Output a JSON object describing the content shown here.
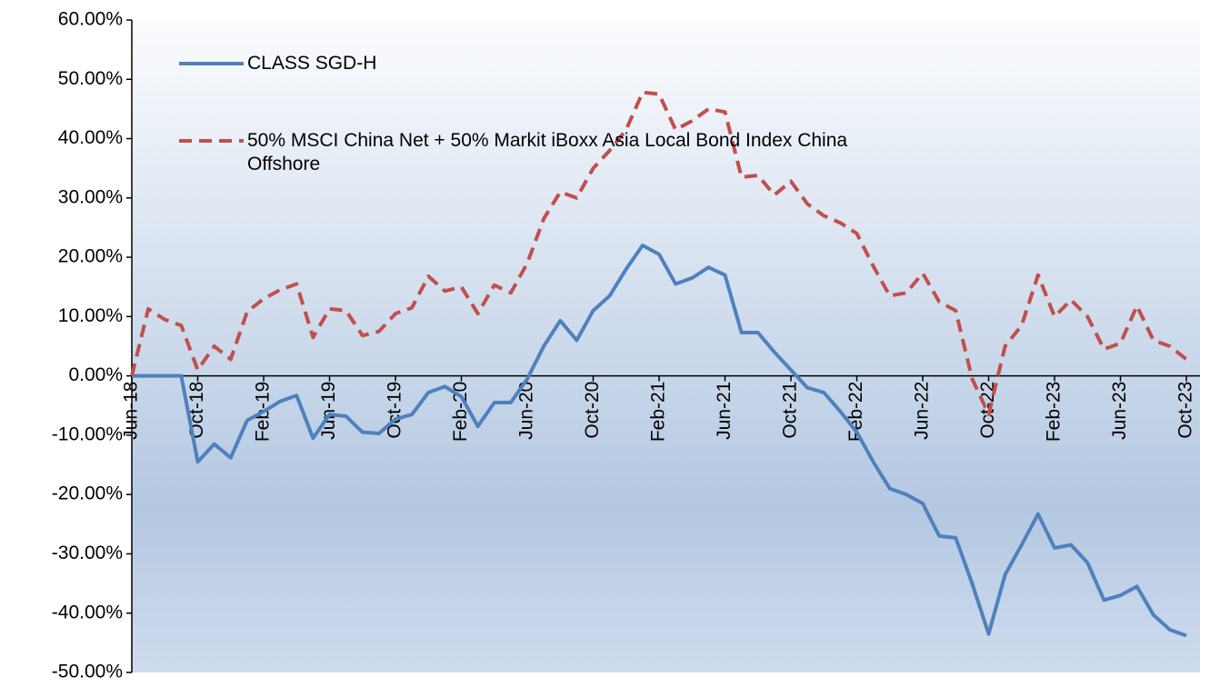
{
  "chart_data": {
    "type": "line",
    "categories": [
      "Jun-18",
      null,
      null,
      null,
      "Oct-18",
      null,
      null,
      null,
      "Feb-19",
      null,
      null,
      null,
      "Jun-19",
      null,
      null,
      null,
      "Oct-19",
      null,
      null,
      null,
      "Feb-20",
      null,
      null,
      null,
      "Jun-20",
      null,
      null,
      null,
      "Oct-20",
      null,
      null,
      null,
      "Feb-21",
      null,
      null,
      null,
      "Jun-21",
      null,
      null,
      null,
      "Oct-21",
      null,
      null,
      null,
      "Feb-22",
      null,
      null,
      null,
      "Jun-22",
      null,
      null,
      null,
      "Oct-22",
      null,
      null,
      null,
      "Feb-23",
      null,
      null,
      null,
      "Jun-23",
      null,
      null,
      null,
      "Oct-23"
    ],
    "series": [
      {
        "name": "CLASS SGD-H",
        "color": "#4f81bd",
        "dashed": false,
        "values": [
          0,
          0,
          0,
          0,
          -14.5,
          -11.5,
          -13.8,
          -7.5,
          -6,
          -4.3,
          -3.3,
          -10.5,
          -6.5,
          -6.8,
          -9.5,
          -9.7,
          -7.3,
          -6.5,
          -2.8,
          -1.8,
          -3.5,
          -8.5,
          -4.5,
          -4.5,
          -0.5,
          5,
          9.3,
          6,
          11,
          13.5,
          18,
          22,
          20.5,
          15.5,
          16.5,
          18.3,
          17,
          7.3,
          7.3,
          4,
          1,
          -2,
          -2.8,
          -6,
          -9.5,
          -14.5,
          -19,
          -20,
          -21.5,
          -27,
          -27.3,
          -35,
          -43.5,
          -33.5,
          -28.5,
          -23.3,
          -29,
          -28.5,
          -31.5,
          -37.8,
          -37,
          -35.5,
          -40.3,
          -42.8,
          -43.8
        ]
      },
      {
        "name": "50% MSCI China Net + 50% Markit iBoxx Asia Local Bond Index China Offshore",
        "color": "#c0504d",
        "dashed": true,
        "values": [
          0,
          11.3,
          9.5,
          8.5,
          1,
          5,
          2.8,
          10.8,
          13,
          14.5,
          15.5,
          6.5,
          11.3,
          11,
          6.8,
          7.5,
          10.5,
          11.5,
          16.8,
          14.3,
          15,
          10.5,
          15.3,
          14,
          19,
          26.5,
          31,
          30,
          35,
          38,
          41.5,
          47.8,
          47.5,
          41.5,
          43,
          45,
          44.5,
          33.5,
          33.8,
          30.5,
          32.8,
          29,
          27,
          25.8,
          24,
          18.5,
          13.5,
          14,
          17.3,
          12.5,
          11,
          -0.5,
          -6.5,
          5,
          8.5,
          17,
          10,
          12.8,
          10,
          4.5,
          5.5,
          11.8,
          6,
          5,
          2.8
        ]
      }
    ],
    "ylim": [
      -50,
      60
    ],
    "yticks": [
      {
        "value": -50,
        "label": "-50.00%"
      },
      {
        "value": -40,
        "label": "-40.00%"
      },
      {
        "value": -30,
        "label": "-30.00%"
      },
      {
        "value": -20,
        "label": "-20.00%"
      },
      {
        "value": -10,
        "label": "-10.00%"
      },
      {
        "value": 0,
        "label": "0.00%"
      },
      {
        "value": 10,
        "label": "10.00%"
      },
      {
        "value": 20,
        "label": "20.00%"
      },
      {
        "value": 30,
        "label": "30.00%"
      },
      {
        "value": 40,
        "label": "40.00%"
      },
      {
        "value": 50,
        "label": "50.00%"
      },
      {
        "value": 60,
        "label": "60.00%"
      }
    ],
    "grid": false,
    "legend": "top-left"
  }
}
